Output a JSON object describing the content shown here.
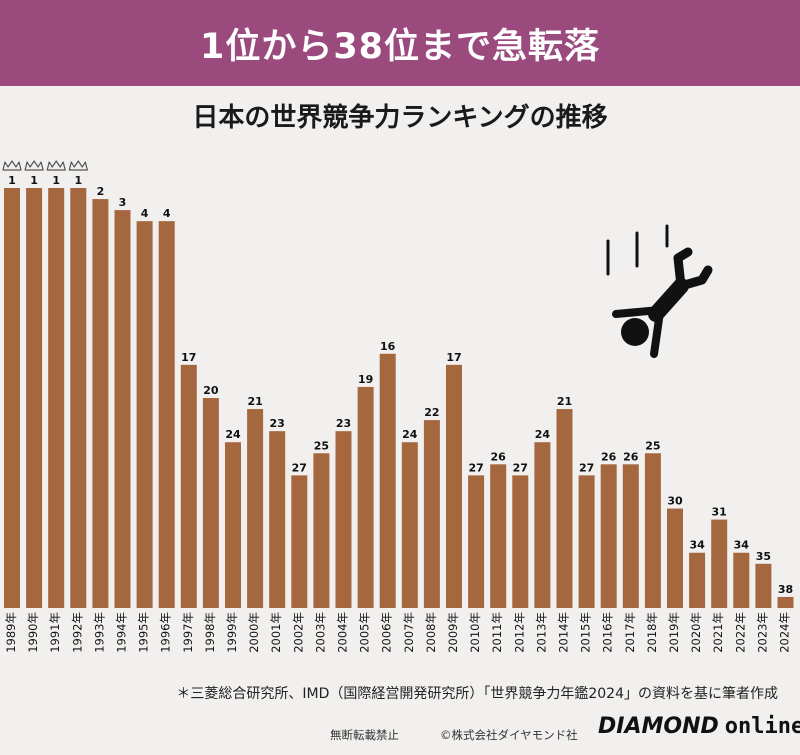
{
  "banner": {
    "title": "1位から38位まで急転落"
  },
  "colors": {
    "banner": "#9b4a7e",
    "bar": "#a5683e",
    "background": "#f2f0ee",
    "ink": "#111111"
  },
  "icons": {
    "crown": "crown-icon",
    "falling_person": "falling-person-icon"
  },
  "chart_data": {
    "type": "bar",
    "title": "日本の世界競争力ランキングの推移",
    "xlabel": "",
    "ylabel": "",
    "y_inverted": true,
    "ylim": [
      39,
      1
    ],
    "grid": false,
    "legend": "none",
    "categories": [
      "1989年",
      "1990年",
      "1991年",
      "1992年",
      "1993年",
      "1994年",
      "1995年",
      "1996年",
      "1997年",
      "1998年",
      "1999年",
      "2000年",
      "2001年",
      "2002年",
      "2003年",
      "2004年",
      "2005年",
      "2006年",
      "2007年",
      "2008年",
      "2009年",
      "2010年",
      "2011年",
      "2012年",
      "2013年",
      "2014年",
      "2015年",
      "2016年",
      "2017年",
      "2018年",
      "2019年",
      "2020年",
      "2021年",
      "2022年",
      "2023年",
      "2024年"
    ],
    "values": [
      1,
      1,
      1,
      1,
      2,
      3,
      4,
      4,
      17,
      20,
      24,
      21,
      23,
      27,
      25,
      23,
      19,
      16,
      24,
      22,
      17,
      27,
      26,
      27,
      24,
      21,
      27,
      26,
      26,
      25,
      30,
      34,
      31,
      34,
      35,
      38
    ],
    "crowned_categories": [
      "1989年",
      "1990年",
      "1991年",
      "1992年"
    ]
  },
  "source_note": "＊三菱総合研究所、IMD（国際経営開発研究所）「世界競争力年鑑2024」の資料を基に筆者作成",
  "footer": {
    "notice": "無断転載禁止",
    "copyright": "©株式会社ダイヤモンド社",
    "logo_main": "DIAMOND",
    "logo_sub": "online"
  }
}
